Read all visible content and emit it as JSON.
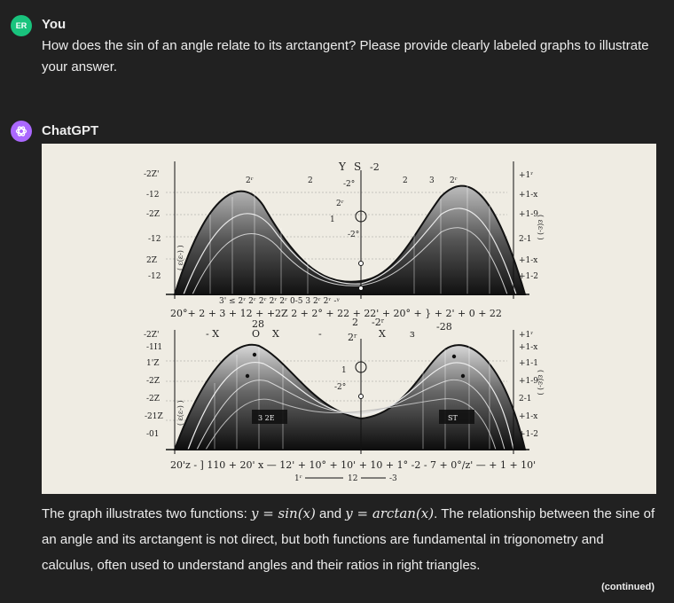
{
  "user": {
    "avatar_initials": "ER",
    "avatar_color": "#19c37d",
    "name": "You",
    "message": "How does the sin of an angle relate to its arctangent?  Please provide clearly labeled graphs to illustrate your answer."
  },
  "assistant": {
    "name": "ChatGPT",
    "avatar_color": "#ab68ff",
    "image": {
      "top_labels": [
        "Y",
        "S",
        "-2",
        "2°",
        "2",
        "-2°",
        "2",
        "3",
        "2°"
      ],
      "mid_labels": [
        "- X",
        "0",
        "X",
        "X",
        "2",
        "-28",
        "28"
      ],
      "bottom_axis_1": "20°+ 2 + 3 + 12 + +2Z 2 + 2° + 22 + 22' + 20° + } + 2' + 0 + 22",
      "bottom_axis_2": "20'z - ] 110 + 20' x — 12' + 10° + 10' + 10 + 1° -2 - 7 + 0°/z' — + 1 + 10'",
      "footer_labels": [
        "1ʳ",
        "12",
        "-3"
      ]
    },
    "text_before": "The graph illustrates two functions: ",
    "func1": "y = sin(x)",
    "text_and": " and ",
    "func2": "y = arctan(x)",
    "text_after": ". The relationship between the sine of an angle and its arctangent is not direct, but both functions are fundamental in trigonometry and calculus, often used to understand angles and their ratios in right triangles.",
    "continued": "(continued)"
  }
}
